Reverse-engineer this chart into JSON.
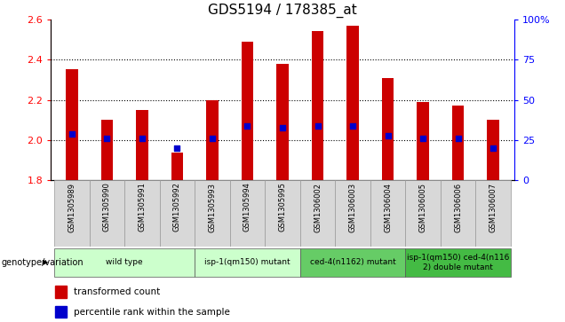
{
  "title": "GDS5194 / 178385_at",
  "samples": [
    "GSM1305989",
    "GSM1305990",
    "GSM1305991",
    "GSM1305992",
    "GSM1305993",
    "GSM1305994",
    "GSM1305995",
    "GSM1306002",
    "GSM1306003",
    "GSM1306004",
    "GSM1306005",
    "GSM1306006",
    "GSM1306007"
  ],
  "bar_values": [
    2.35,
    2.1,
    2.15,
    1.94,
    2.2,
    2.49,
    2.38,
    2.54,
    2.57,
    2.31,
    2.19,
    2.17,
    2.1
  ],
  "blue_dot_values": [
    2.03,
    2.01,
    2.01,
    1.96,
    2.01,
    2.07,
    2.06,
    2.07,
    2.07,
    2.02,
    2.01,
    2.01,
    1.96
  ],
  "ylim": [
    1.8,
    2.6
  ],
  "yticks_left": [
    1.8,
    2.0,
    2.2,
    2.4,
    2.6
  ],
  "yticks_right": [
    0,
    25,
    50,
    75,
    100
  ],
  "bar_color": "#cc0000",
  "dot_color": "#0000cc",
  "title_fontsize": 11,
  "bar_width": 0.35,
  "group_spans": [
    {
      "start": 0,
      "end": 3,
      "color": "#ccffcc",
      "label": "wild type"
    },
    {
      "start": 4,
      "end": 6,
      "color": "#ccffcc",
      "label": "isp-1(qm150) mutant"
    },
    {
      "start": 7,
      "end": 9,
      "color": "#66cc66",
      "label": "ced-4(n1162) mutant"
    },
    {
      "start": 10,
      "end": 12,
      "color": "#44bb44",
      "label": "isp-1(qm150) ced-4(n116\n2) double mutant"
    }
  ],
  "genotype_label": "genotype/variation"
}
